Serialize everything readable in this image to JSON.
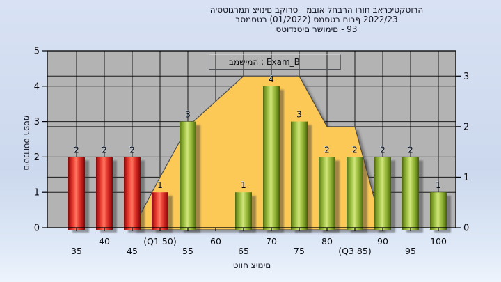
{
  "title": {
    "line1": "היסטוגרמת ציונים בקורס - מבוא לחברה ורוח בארכיטקטורה",
    "line2": "בסמסטר  (01/2022)  סמסטר חורף 2022/23",
    "line3": "סטודנטים רשומים - 93"
  },
  "legend": {
    "label": "במשימה : Exam_B"
  },
  "axes": {
    "x_title": "טווח ציונים",
    "y_left_title": "מספר סטודנטים"
  },
  "chart_data": {
    "type": "bar",
    "title": "היסטוגרמת ציונים בקורס - מבוא לחברה ורוח בארכיטקטורה",
    "subtitle": "בסמסטר (01/2022) סמסטר חורף 2022/23",
    "note": "סטודנטים רשומים - 93",
    "categories": [
      "35",
      "40",
      "45",
      "(Q1 50)",
      "55",
      "60",
      "65",
      "70",
      "75",
      "80",
      "(Q3 85)",
      "90",
      "95",
      "100"
    ],
    "values": [
      2,
      2,
      2,
      1,
      3,
      0,
      1,
      4,
      3,
      2,
      2,
      2,
      2,
      1
    ],
    "bar_groups": [
      "fail",
      "fail",
      "fail",
      "fail",
      "pass",
      "pass",
      "pass",
      "pass",
      "pass",
      "pass",
      "pass",
      "pass",
      "pass",
      "pass"
    ],
    "xlabel": "טווח ציונים",
    "ylabel_left": "מספר סטודנטים",
    "y_left_ticks": [
      0,
      1,
      2,
      3,
      4,
      5
    ],
    "y_right_ticks": [
      0,
      1,
      2,
      3
    ],
    "ylim_left": [
      0,
      5
    ],
    "ylim_right": [
      0,
      3.5
    ],
    "grid": true,
    "legend_position": "top-center",
    "legend_entry": "במשימה : Exam_B",
    "area_series": {
      "name": "quartile-band",
      "axis": "right",
      "points": [
        {
          "category_index": 2,
          "value": 0
        },
        {
          "category_index": 3,
          "value": 1
        },
        {
          "category_index": 4,
          "value": 2
        },
        {
          "category_index": 6,
          "value": 3
        },
        {
          "category_index": 8,
          "value": 3
        },
        {
          "category_index": 9,
          "value": 2
        },
        {
          "category_index": 10,
          "value": 2
        },
        {
          "category_index": 11,
          "value": 0
        }
      ]
    },
    "colors": {
      "fail_bar": "#e03030",
      "pass_bar": "#9ab83e",
      "area_fill": "#fcc957",
      "area_border": "#4d4d4d",
      "plot_bg": "#b3b3b3",
      "page_bg": "#d2dcf0"
    }
  }
}
